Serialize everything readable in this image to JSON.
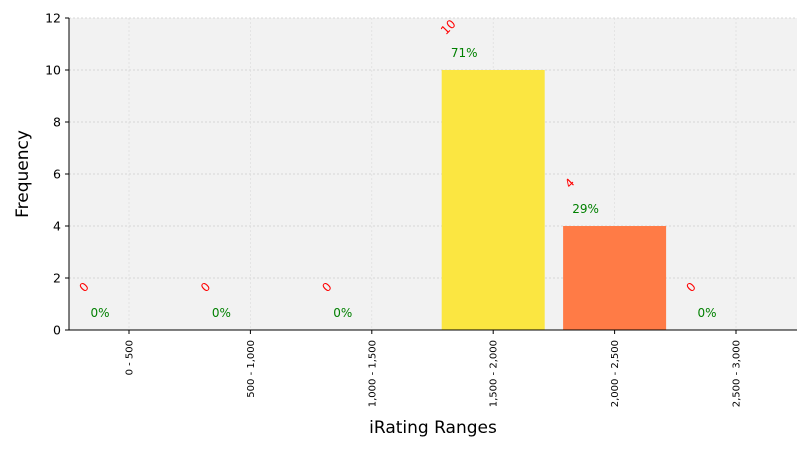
{
  "chart_data": {
    "type": "bar",
    "xlabel": "iRating Ranges",
    "ylabel": "Frequency",
    "categories": [
      "0 - 500",
      "500 - 1,000",
      "1,000 - 1,500",
      "1,500 - 2,000",
      "2,000 - 2,500",
      "2,500 - 3,000"
    ],
    "values": [
      0,
      0,
      0,
      10,
      4,
      0
    ],
    "percent_labels": [
      "0%",
      "0%",
      "0%",
      "71%",
      "29%",
      "0%"
    ],
    "count_labels": [
      "0",
      "0",
      "0",
      "10",
      "4",
      "0"
    ],
    "bar_colors": [
      "#ffffff",
      "#ffffff",
      "#ffffff",
      "#fbe641",
      "#ff7b46",
      "#ffffff"
    ],
    "ylim": [
      0,
      12
    ],
    "yticks": [
      "0",
      "2",
      "4",
      "6",
      "8",
      "10",
      "12"
    ],
    "grid": true,
    "colors": {
      "plot_background": "#f2f2f2",
      "count_label": "#ff0000",
      "percent_label": "#008000",
      "grid": "#cccccc"
    }
  }
}
